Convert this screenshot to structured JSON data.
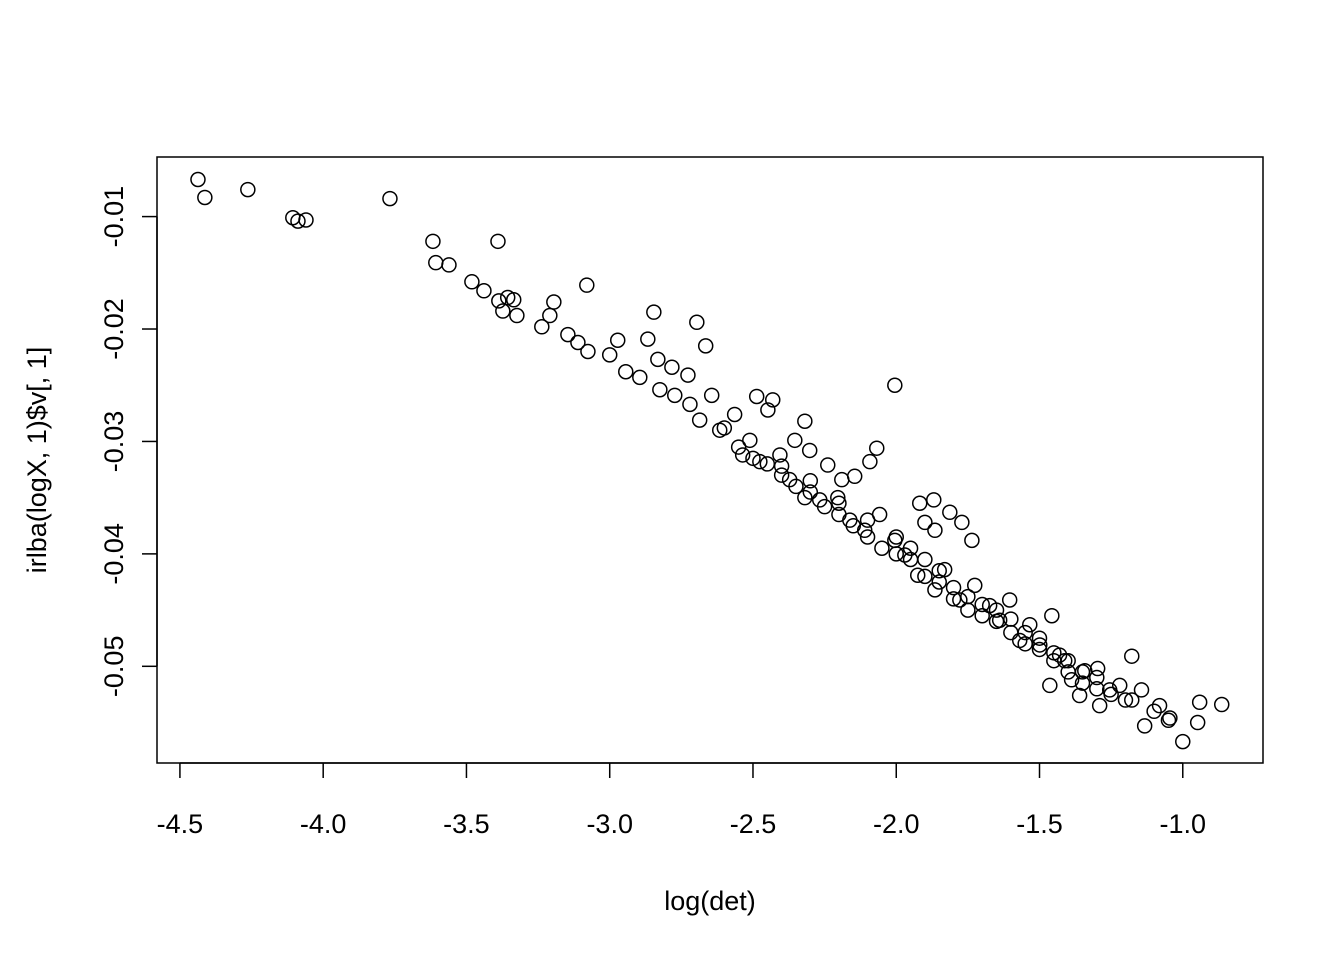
{
  "chart_data": {
    "type": "scatter",
    "x_label": "log(det)",
    "y_label": "irlba(logX, 1)$v[, 1]",
    "color": "#000000",
    "xlim": [
      -4.58,
      -0.72
    ],
    "ylim": [
      -0.0586,
      -0.0047
    ],
    "xticks": [
      -4.5,
      {
        "value": -4.0,
        "label": "-4.0"
      },
      -3.5,
      {
        "value": -3.0,
        "label": "-3.0"
      },
      -2.5,
      {
        "value": -2.0,
        "label": "-2.0"
      },
      -1.5,
      {
        "value": -1.0,
        "label": "-1.0"
      }
    ],
    "yticks": [
      -0.01,
      -0.02,
      -0.03,
      -0.04,
      -0.05
    ],
    "x": [
      -4.437,
      -4.413,
      -4.263,
      -4.106,
      -4.088,
      -4.06,
      -3.767,
      -3.617,
      -3.607,
      -3.561,
      -3.39,
      -3.481,
      -3.439,
      -3.387,
      -3.356,
      -3.335,
      -3.373,
      -3.324,
      -3.237,
      -3.195,
      -3.209,
      -3.08,
      -3.146,
      -3.111,
      -3.076,
      -3.0,
      -2.972,
      -2.944,
      -2.895,
      -2.846,
      -2.867,
      -2.832,
      -2.783,
      -2.727,
      -2.696,
      -2.665,
      -2.825,
      -2.773,
      -2.72,
      -2.686,
      -2.644,
      -2.616,
      -2.564,
      -2.511,
      -2.487,
      -2.431,
      -2.448,
      -2.536,
      -2.476,
      -2.406,
      -2.319,
      -2.354,
      -2.302,
      -2.239,
      -2.19,
      -2.372,
      -2.319,
      -2.267,
      -2.204,
      -2.145,
      -2.092,
      -2.068,
      -2.005,
      -2.162,
      -2.11,
      -2.058,
      -2.005,
      -1.97,
      -1.918,
      -1.869,
      -1.9,
      -1.865,
      -1.813,
      -1.771,
      -1.736,
      -1.925,
      -1.865,
      -1.831,
      -1.778,
      -1.726,
      -1.674,
      -1.639,
      -1.604,
      -1.569,
      -1.534,
      -1.499,
      -1.457,
      -1.43,
      -1.388,
      -1.342,
      -1.297,
      -1.255,
      -1.22,
      -1.178,
      -1.178,
      -1.133,
      -1.081,
      -1.045,
      -1.0,
      -0.948,
      -0.941,
      -0.864,
      -1.464,
      -1.29,
      -1.144,
      -1.412,
      -1.36,
      -2.6,
      -2.55,
      -2.45,
      -2.4,
      -2.35,
      -2.3,
      -2.25,
      -2.2,
      -2.15,
      -2.1,
      -2.05,
      -2.0,
      -1.95,
      -1.9,
      -1.85,
      -1.8,
      -1.75,
      -1.7,
      -1.65,
      -1.6,
      -1.55,
      -1.5,
      -1.45,
      -1.4,
      -1.35,
      -1.3,
      -1.25,
      -1.2,
      -1.1,
      -1.05,
      -2.5,
      -2.4,
      -2.3,
      -2.2,
      -2.1,
      -2.0,
      -1.95,
      -1.9,
      -1.85,
      -1.8,
      -1.75,
      -1.7,
      -1.65,
      -1.6,
      -1.55,
      -1.5,
      -1.45,
      -1.4,
      -1.35,
      -1.3
    ],
    "values": [
      -0.0067,
      -0.0083,
      -0.0076,
      -0.0101,
      -0.0104,
      -0.0103,
      -0.0084,
      -0.0122,
      -0.0141,
      -0.0143,
      -0.0122,
      -0.0158,
      -0.0166,
      -0.0175,
      -0.0172,
      -0.0174,
      -0.0184,
      -0.0188,
      -0.0198,
      -0.0176,
      -0.0188,
      -0.0161,
      -0.0205,
      -0.0212,
      -0.022,
      -0.0223,
      -0.021,
      -0.0238,
      -0.0243,
      -0.0185,
      -0.0209,
      -0.0227,
      -0.0234,
      -0.0241,
      -0.0194,
      -0.0215,
      -0.0254,
      -0.0259,
      -0.0267,
      -0.0281,
      -0.0259,
      -0.029,
      -0.0276,
      -0.0299,
      -0.026,
      -0.0263,
      -0.0272,
      -0.0312,
      -0.0318,
      -0.0312,
      -0.0282,
      -0.0299,
      -0.0308,
      -0.0321,
      -0.0334,
      -0.0334,
      -0.035,
      -0.0352,
      -0.035,
      -0.0331,
      -0.0318,
      -0.0306,
      -0.025,
      -0.037,
      -0.0379,
      -0.0365,
      -0.0388,
      -0.0401,
      -0.0355,
      -0.0352,
      -0.0372,
      -0.0379,
      -0.0363,
      -0.0372,
      -0.0388,
      -0.0419,
      -0.0432,
      -0.0414,
      -0.0441,
      -0.0428,
      -0.0446,
      -0.0459,
      -0.0441,
      -0.0477,
      -0.0463,
      -0.0481,
      -0.0455,
      -0.049,
      -0.0512,
      -0.0504,
      -0.0502,
      -0.0521,
      -0.0517,
      -0.0491,
      -0.053,
      -0.0553,
      -0.0535,
      -0.0546,
      -0.0567,
      -0.055,
      -0.0532,
      -0.0534,
      -0.0517,
      -0.0535,
      -0.0521,
      -0.0495,
      -0.0526,
      -0.0288,
      -0.0305,
      -0.032,
      -0.033,
      -0.034,
      -0.0345,
      -0.0358,
      -0.0365,
      -0.0375,
      -0.0385,
      -0.0395,
      -0.04,
      -0.0405,
      -0.042,
      -0.0425,
      -0.044,
      -0.045,
      -0.0445,
      -0.046,
      -0.047,
      -0.048,
      -0.0485,
      -0.0495,
      -0.0505,
      -0.0515,
      -0.052,
      -0.0525,
      -0.053,
      -0.054,
      -0.0548,
      -0.0315,
      -0.0322,
      -0.0335,
      -0.0355,
      -0.037,
      -0.0385,
      -0.0395,
      -0.0405,
      -0.0415,
      -0.043,
      -0.0438,
      -0.0455,
      -0.045,
      -0.0458,
      -0.047,
      -0.0475,
      -0.0488,
      -0.0495,
      -0.0505,
      -0.051
    ]
  }
}
